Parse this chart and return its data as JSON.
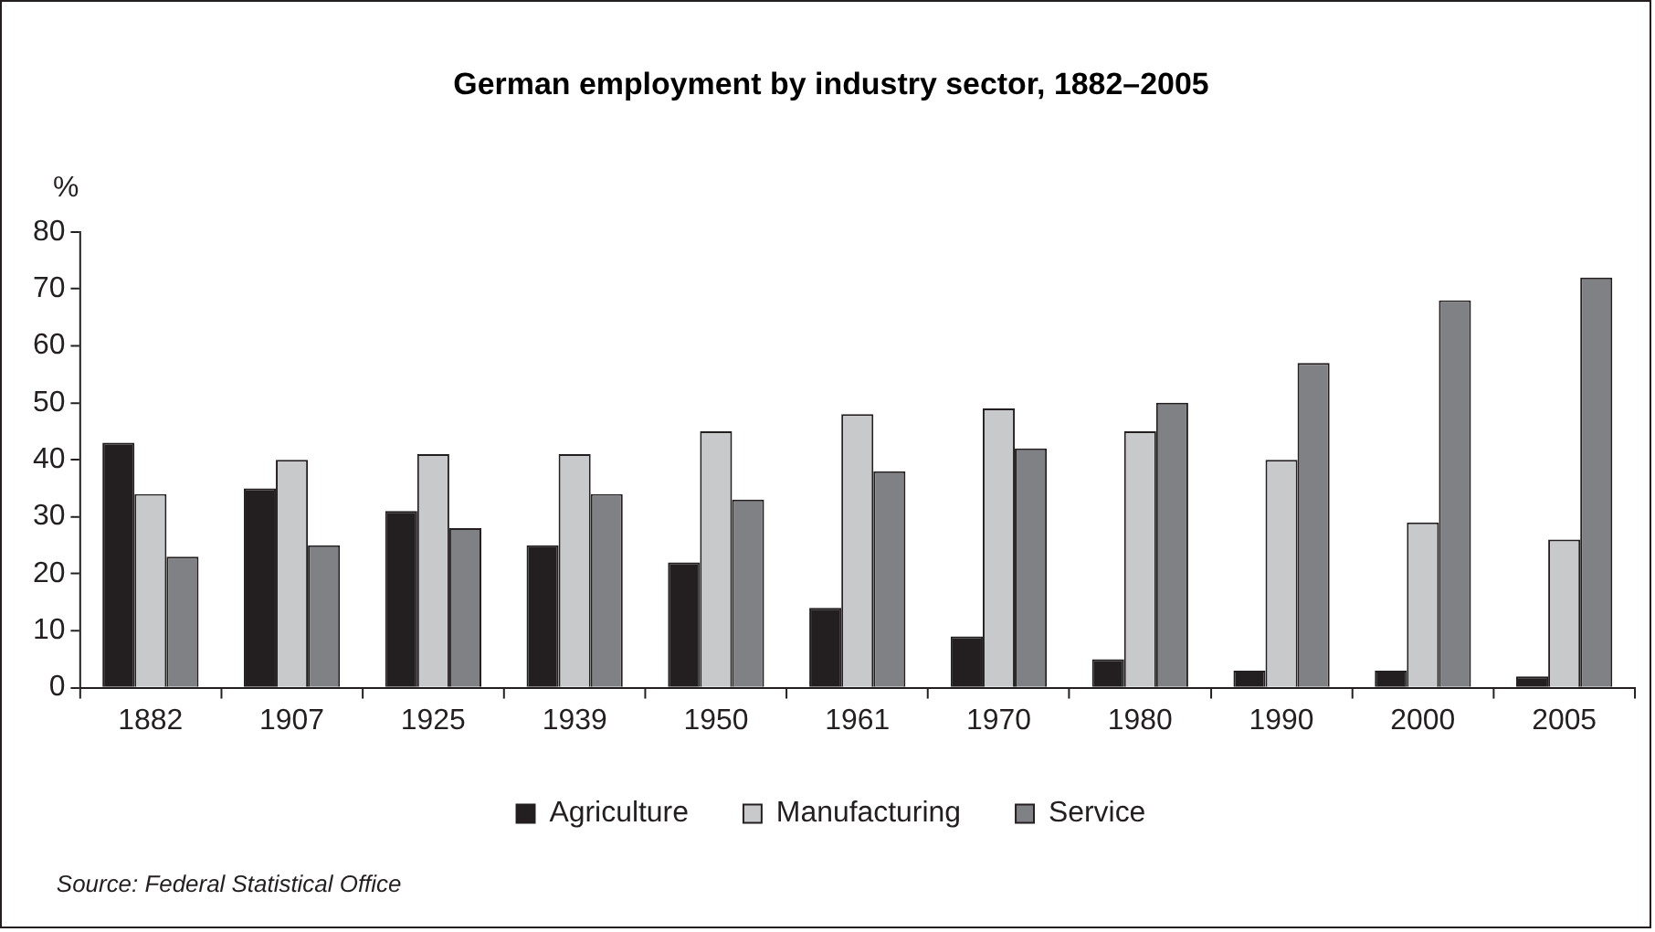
{
  "chart_data": {
    "type": "bar",
    "title": "German employment by industry sector, 1882–2005",
    "ylabel": "%",
    "categories": [
      "1882",
      "1907",
      "1925",
      "1939",
      "1950",
      "1961",
      "1970",
      "1980",
      "1990",
      "2000",
      "2005"
    ],
    "series": [
      {
        "name": "Agriculture",
        "color": "#231f20",
        "values": [
          43,
          35,
          31,
          25,
          22,
          14,
          9,
          5,
          3,
          3,
          2
        ]
      },
      {
        "name": "Manufacturing",
        "color": "#c8c9cb",
        "values": [
          34,
          40,
          41,
          41,
          45,
          48,
          49,
          45,
          40,
          29,
          26
        ]
      },
      {
        "name": "Service",
        "color": "#808185",
        "values": [
          23,
          25,
          28,
          34,
          33,
          38,
          42,
          50,
          57,
          68,
          72
        ]
      }
    ],
    "ylim": [
      0,
      80
    ],
    "yticks": [
      0,
      10,
      20,
      30,
      40,
      50,
      60,
      70,
      80
    ],
    "grid": false,
    "legend": "bottom",
    "annotations": [
      "Source: Federal Statistical Office"
    ]
  }
}
